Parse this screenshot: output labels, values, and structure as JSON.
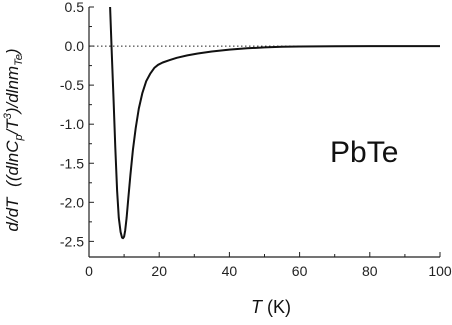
{
  "chart_data": {
    "type": "line",
    "xlabel_symbol": "T",
    "xlabel_unit": " (K)",
    "ylabel_parts": {
      "a": "d/dT",
      "b": "((dlnC",
      "b_sub": "p",
      "c": "/T",
      "c_sup": "3",
      "d": ")/dlnm",
      "d_sub": "Te",
      "e": ")"
    },
    "annotation": "PbTe",
    "xlim": [
      0,
      100
    ],
    "ylim": [
      -2.7,
      0.5
    ],
    "xticks": [
      0,
      20,
      40,
      60,
      80,
      100
    ],
    "xtick_labels": [
      "0",
      "20",
      "40",
      "60",
      "80",
      "100"
    ],
    "yticks": [
      0.5,
      0.0,
      -0.5,
      -1.0,
      -1.5,
      -2.0,
      -2.5
    ],
    "ytick_labels": [
      "0.5",
      "0.0",
      "-0.5",
      "-1.0",
      "-1.5",
      "-2.0",
      "-2.5"
    ],
    "reference_line": {
      "y": 0,
      "style": "dotted"
    },
    "grid": false,
    "series": [
      {
        "x": [
          6.0,
          6.5,
          7.0,
          7.5,
          8.0,
          8.5,
          9.0,
          9.4,
          9.7,
          10.0,
          10.3,
          10.7,
          11.2,
          11.8,
          12.5,
          13.3,
          14.2,
          15.2,
          16.3,
          17.5,
          18.6,
          19.7,
          21,
          23,
          25,
          28,
          31,
          35,
          40,
          45,
          50,
          55,
          60,
          65,
          70,
          80,
          90,
          100
        ],
        "y": [
          0.5,
          -0.1,
          -0.7,
          -1.3,
          -1.85,
          -2.2,
          -2.38,
          -2.45,
          -2.46,
          -2.44,
          -2.36,
          -2.2,
          -1.95,
          -1.65,
          -1.33,
          -1.05,
          -0.8,
          -0.6,
          -0.45,
          -0.35,
          -0.28,
          -0.24,
          -0.21,
          -0.18,
          -0.15,
          -0.12,
          -0.095,
          -0.07,
          -0.045,
          -0.028,
          -0.017,
          -0.01,
          -0.006,
          -0.004,
          -0.002,
          -0.001,
          0.0,
          0.0
        ]
      }
    ]
  }
}
